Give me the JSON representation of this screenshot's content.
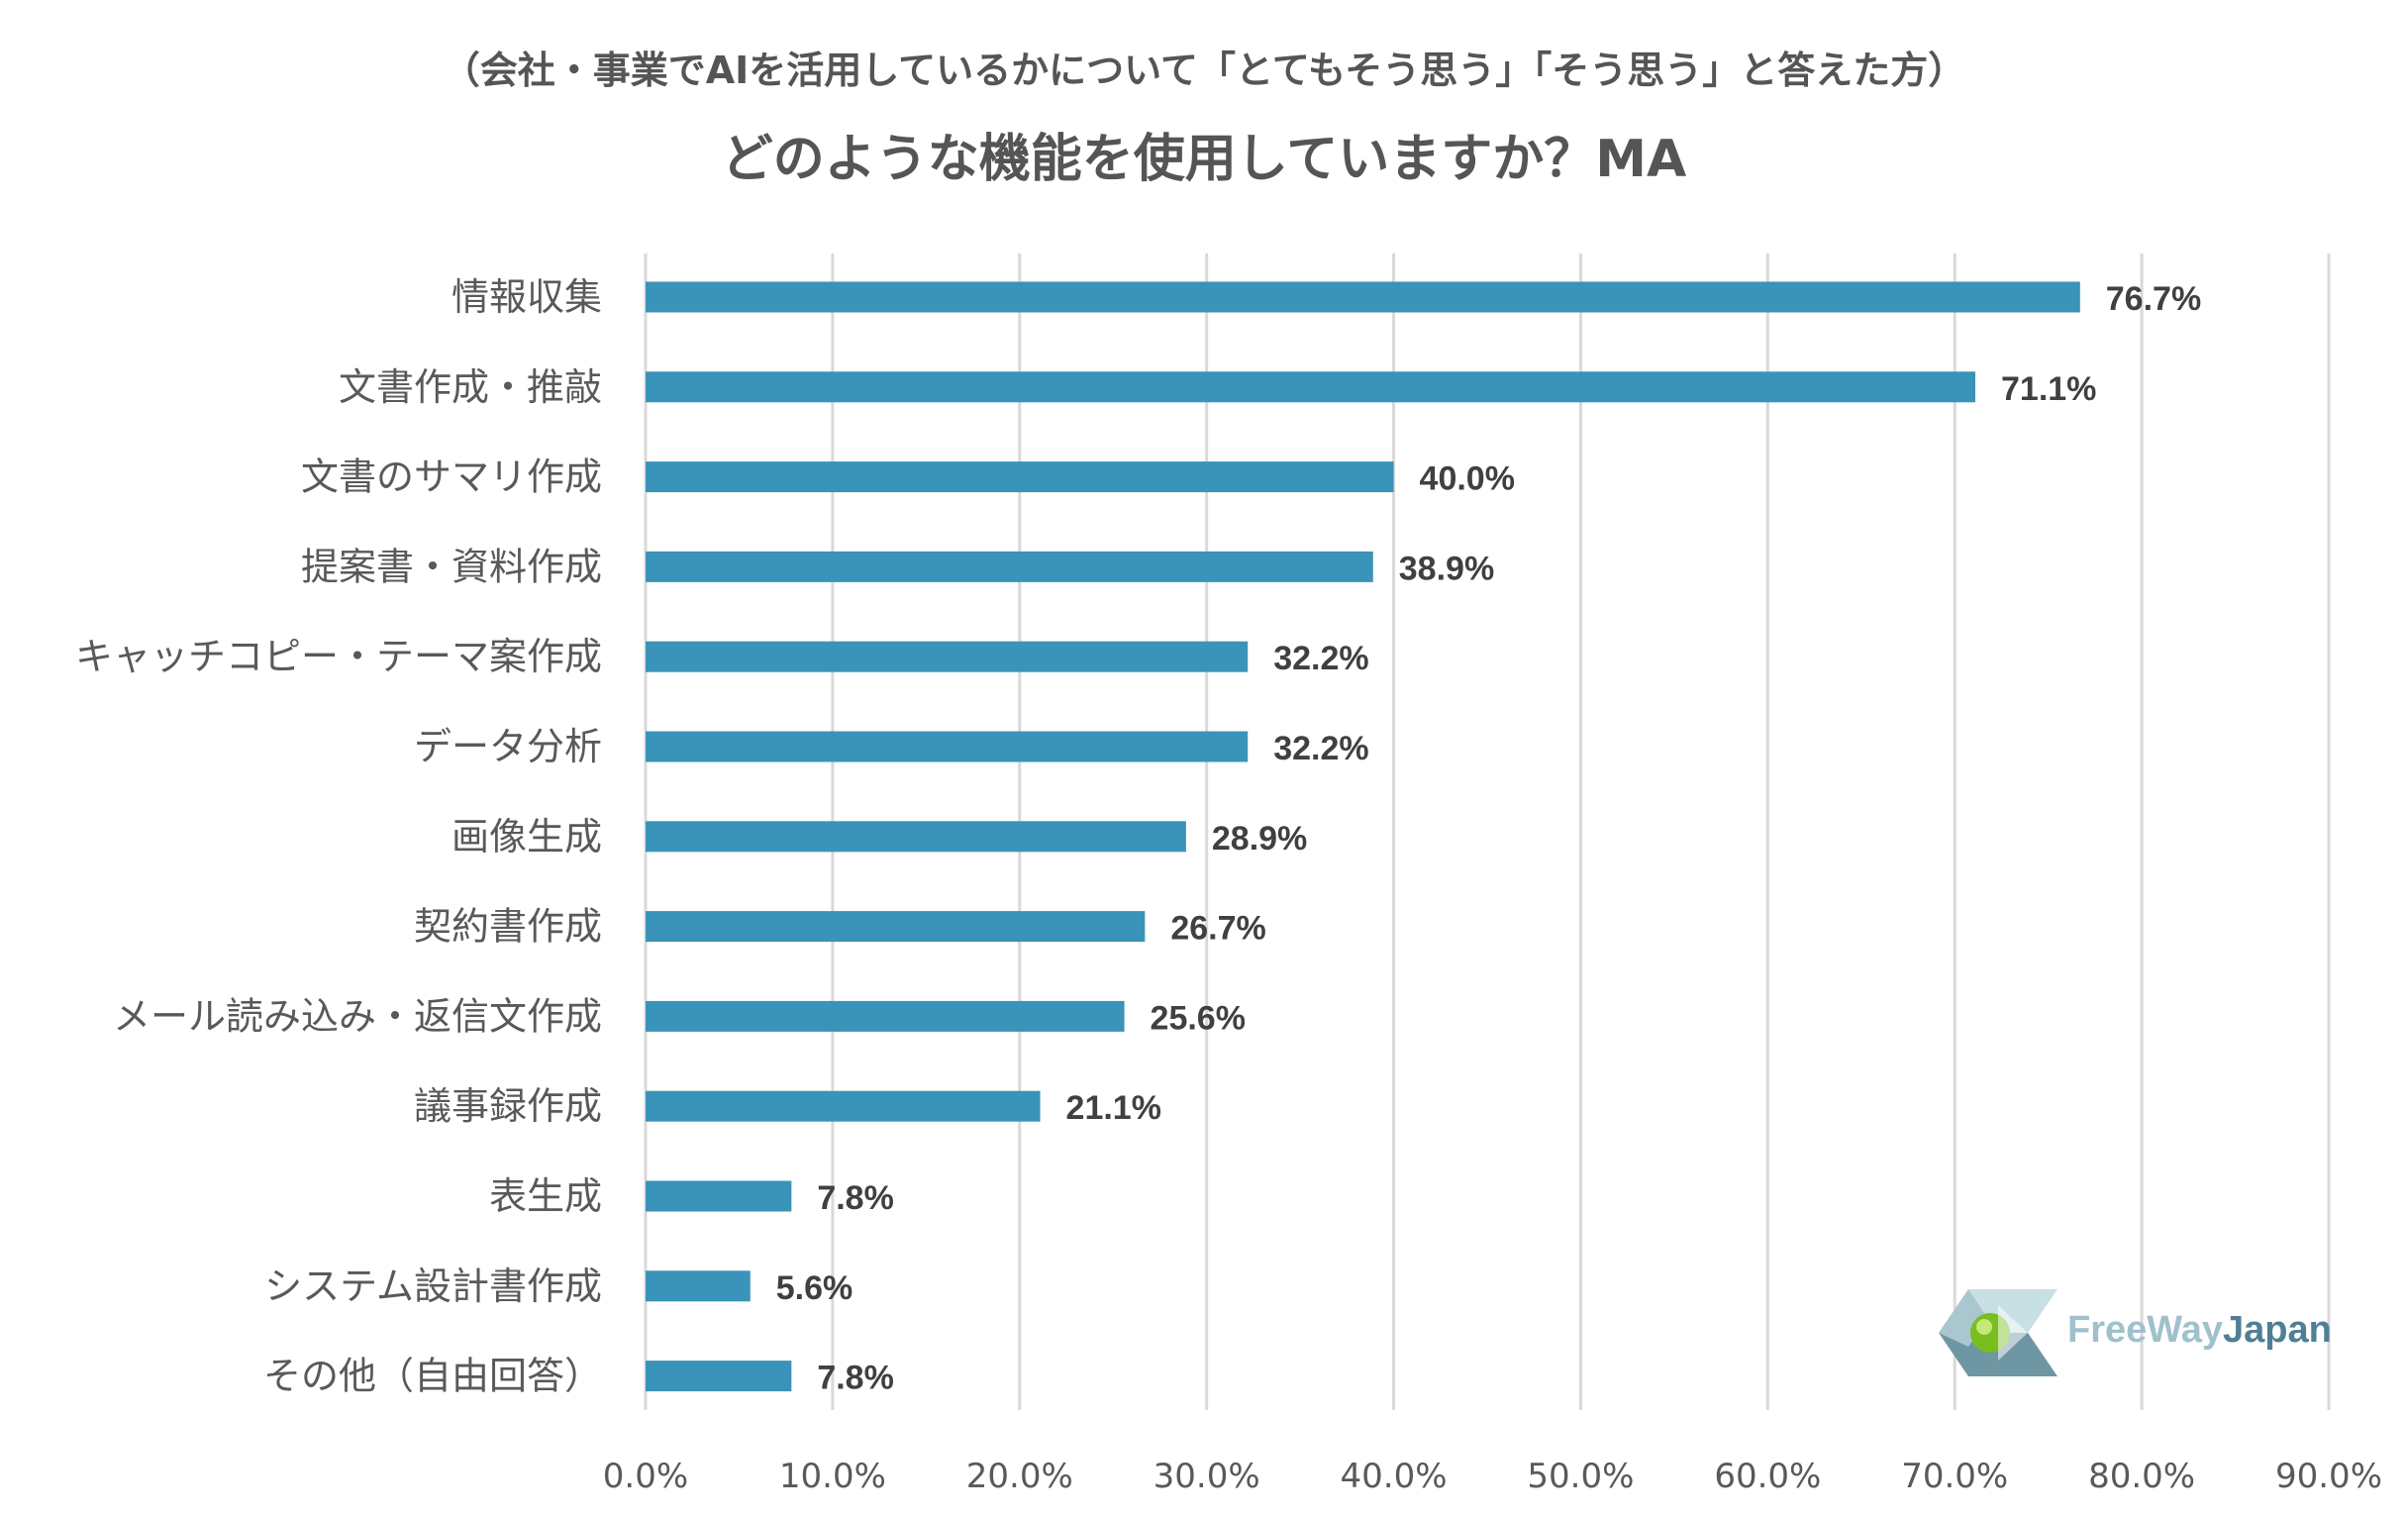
{
  "subtitle": "（会社・事業でAIを活用しているかについて「とてもそう思う」「そう思う」と答えた方）",
  "title": "どのような機能を使用していますか？MA",
  "colors": {
    "bar": "#3a93b8",
    "grid": "#d9d9d9",
    "text": "#595959",
    "title": "#555555"
  },
  "chart_data": {
    "type": "bar",
    "orientation": "horizontal",
    "title": "どのような機能を使用していますか？MA",
    "subtitle": "（会社・事業でAIを活用しているかについて「とてもそう思う」「そう思う」と答えた方）",
    "xlabel": "",
    "ylabel": "",
    "xlim": [
      0,
      90
    ],
    "xticks": [
      0,
      10,
      20,
      30,
      40,
      50,
      60,
      70,
      80,
      90
    ],
    "xtick_labels": [
      "0.0%",
      "10.0%",
      "20.0%",
      "30.0%",
      "40.0%",
      "50.0%",
      "60.0%",
      "70.0%",
      "80.0%",
      "90.0%"
    ],
    "grid": true,
    "categories": [
      "情報収集",
      "文書作成・推敲",
      "文書のサマリ作成",
      "提案書・資料作成",
      "キャッチコピー・テーマ案作成",
      "データ分析",
      "画像生成",
      "契約書作成",
      "メール読み込み・返信文作成",
      "議事録作成",
      "表生成",
      "システム設計書作成",
      "その他（自由回答）"
    ],
    "values": [
      76.7,
      71.1,
      40.0,
      38.9,
      32.2,
      32.2,
      28.9,
      26.7,
      25.6,
      21.1,
      7.8,
      5.6,
      7.8
    ],
    "value_labels": [
      "76.7%",
      "71.1%",
      "40.0%",
      "38.9%",
      "32.2%",
      "32.2%",
      "28.9%",
      "26.7%",
      "25.6%",
      "21.1%",
      "7.8%",
      "5.6%",
      "7.8%"
    ]
  },
  "logo": {
    "text_part1": "FreeWay",
    "text_part2": "Japan"
  }
}
